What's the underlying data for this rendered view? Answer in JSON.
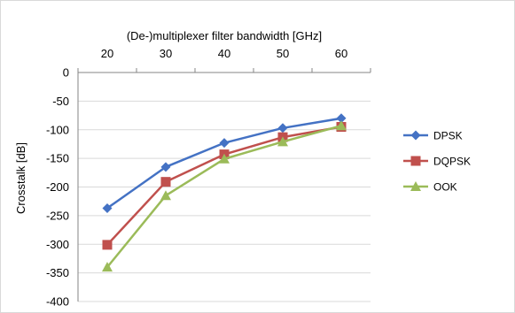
{
  "chart_data": {
    "type": "line",
    "title": "",
    "xlabel": "(De-)multiplexer filter bandwidth [GHz]",
    "ylabel": "Crosstalk [dB]",
    "x_axis_position": "top",
    "categories": [
      20,
      30,
      40,
      50,
      60
    ],
    "ylim": [
      -400,
      0
    ],
    "ytick_step": 50,
    "grid": "horizontal",
    "legend_position": "right",
    "series": [
      {
        "name": "DPSK",
        "values": [
          -237,
          -165,
          -123,
          -97,
          -80
        ],
        "color": "#4472c4",
        "marker": "diamond"
      },
      {
        "name": "DQPSK",
        "values": [
          -301,
          -191,
          -143,
          -113,
          -95
        ],
        "color": "#c0504d",
        "marker": "square"
      },
      {
        "name": "OOK",
        "values": [
          -340,
          -215,
          -151,
          -121,
          -93
        ],
        "color": "#9bbb59",
        "marker": "triangle"
      }
    ]
  }
}
